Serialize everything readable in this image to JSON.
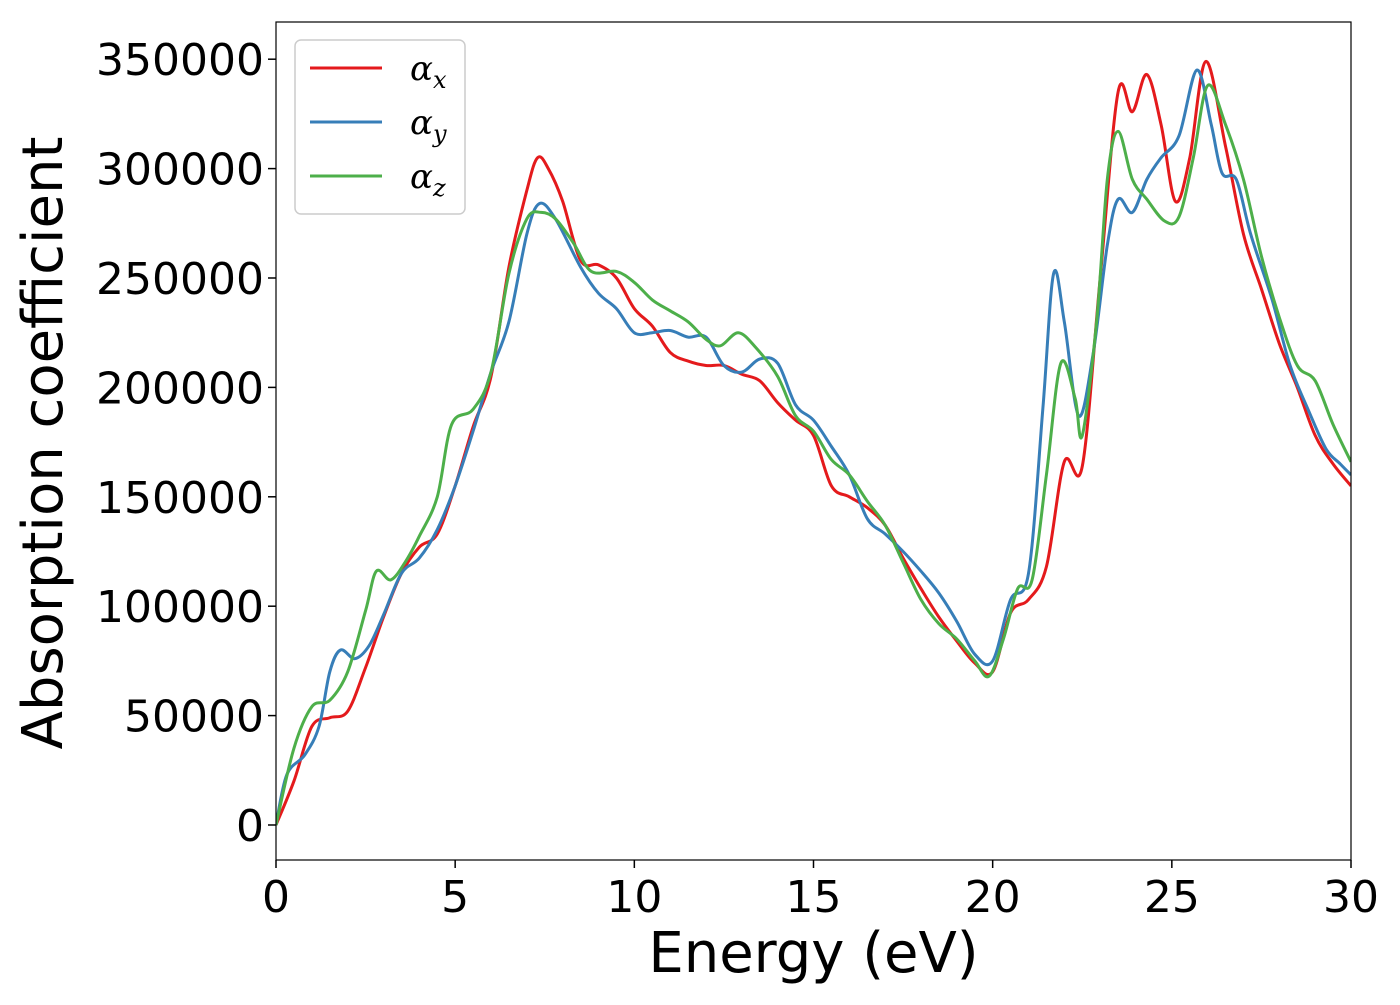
{
  "chart_data": {
    "type": "line",
    "xlabel": "Energy (eV)",
    "ylabel": "Absorption coefficient",
    "xlim": [
      0,
      30
    ],
    "ylim": [
      -16000,
      367000
    ],
    "x_ticks": [
      0,
      5,
      10,
      15,
      20,
      25,
      30
    ],
    "x_tick_labels": [
      "0",
      "5",
      "10",
      "15",
      "20",
      "25",
      "30"
    ],
    "y_ticks": [
      0,
      50000,
      100000,
      150000,
      200000,
      250000,
      300000,
      350000
    ],
    "y_tick_labels": [
      "0",
      "50000",
      "100000",
      "150000",
      "200000",
      "250000",
      "300000",
      "350000"
    ],
    "grid": false,
    "legend_position": "top-left",
    "series": [
      {
        "name": "αx",
        "legend_base": "α",
        "legend_sub": "x",
        "color": "#e41a1c",
        "points": [
          [
            0,
            0
          ],
          [
            0.5,
            20000
          ],
          [
            1.0,
            45000
          ],
          [
            1.5,
            49000
          ],
          [
            2.0,
            52000
          ],
          [
            2.5,
            72000
          ],
          [
            3.0,
            95000
          ],
          [
            3.5,
            115000
          ],
          [
            4.0,
            127000
          ],
          [
            4.5,
            133000
          ],
          [
            5.0,
            155000
          ],
          [
            5.5,
            182000
          ],
          [
            6.0,
            205000
          ],
          [
            6.5,
            255000
          ],
          [
            7.0,
            290000
          ],
          [
            7.3,
            305000
          ],
          [
            7.6,
            300000
          ],
          [
            8.0,
            285000
          ],
          [
            8.5,
            258000
          ],
          [
            9.0,
            256000
          ],
          [
            9.5,
            250000
          ],
          [
            10.0,
            236000
          ],
          [
            10.5,
            228000
          ],
          [
            11.0,
            216000
          ],
          [
            11.5,
            212000
          ],
          [
            12.0,
            210000
          ],
          [
            12.5,
            210000
          ],
          [
            13.0,
            206000
          ],
          [
            13.5,
            203000
          ],
          [
            14.0,
            193000
          ],
          [
            14.5,
            185000
          ],
          [
            15.0,
            178000
          ],
          [
            15.5,
            155000
          ],
          [
            16.0,
            150000
          ],
          [
            16.5,
            145000
          ],
          [
            17.0,
            137000
          ],
          [
            17.5,
            122000
          ],
          [
            18.0,
            108000
          ],
          [
            18.5,
            95000
          ],
          [
            19.0,
            84000
          ],
          [
            19.5,
            74000
          ],
          [
            20.0,
            70000
          ],
          [
            20.5,
            97000
          ],
          [
            21.0,
            103000
          ],
          [
            21.5,
            118000
          ],
          [
            22.0,
            166000
          ],
          [
            22.5,
            164000
          ],
          [
            23.0,
            250000
          ],
          [
            23.5,
            335000
          ],
          [
            23.9,
            326000
          ],
          [
            24.3,
            343000
          ],
          [
            24.7,
            320000
          ],
          [
            25.1,
            285000
          ],
          [
            25.5,
            305000
          ],
          [
            25.95,
            349000
          ],
          [
            26.5,
            310000
          ],
          [
            27.0,
            270000
          ],
          [
            27.5,
            245000
          ],
          [
            28.0,
            220000
          ],
          [
            28.5,
            200000
          ],
          [
            29.0,
            178000
          ],
          [
            29.5,
            165000
          ],
          [
            30.0,
            155000
          ]
        ]
      },
      {
        "name": "αy",
        "legend_base": "α",
        "legend_sub": "y",
        "color": "#377eb8",
        "points": [
          [
            0,
            0
          ],
          [
            0.3,
            23000
          ],
          [
            0.8,
            32000
          ],
          [
            1.2,
            45000
          ],
          [
            1.5,
            70000
          ],
          [
            1.8,
            80000
          ],
          [
            2.2,
            76000
          ],
          [
            2.6,
            82000
          ],
          [
            3.0,
            96000
          ],
          [
            3.5,
            115000
          ],
          [
            4.0,
            122000
          ],
          [
            4.5,
            135000
          ],
          [
            5.0,
            155000
          ],
          [
            5.5,
            180000
          ],
          [
            6.0,
            207000
          ],
          [
            6.5,
            230000
          ],
          [
            7.0,
            270000
          ],
          [
            7.35,
            284000
          ],
          [
            7.8,
            277000
          ],
          [
            8.5,
            255000
          ],
          [
            9.0,
            243000
          ],
          [
            9.5,
            236000
          ],
          [
            10.0,
            225000
          ],
          [
            10.5,
            225000
          ],
          [
            11.0,
            226000
          ],
          [
            11.5,
            223000
          ],
          [
            12.0,
            223000
          ],
          [
            12.5,
            210000
          ],
          [
            13.0,
            207000
          ],
          [
            13.5,
            213000
          ],
          [
            14.0,
            211000
          ],
          [
            14.5,
            192000
          ],
          [
            15.0,
            185000
          ],
          [
            15.5,
            173000
          ],
          [
            16.0,
            160000
          ],
          [
            16.5,
            140000
          ],
          [
            17.0,
            133000
          ],
          [
            17.5,
            125000
          ],
          [
            18.0,
            116000
          ],
          [
            18.5,
            106000
          ],
          [
            19.0,
            93000
          ],
          [
            19.5,
            78000
          ],
          [
            20.0,
            75000
          ],
          [
            20.5,
            103000
          ],
          [
            21.0,
            115000
          ],
          [
            21.4,
            190000
          ],
          [
            21.7,
            252000
          ],
          [
            22.0,
            230000
          ],
          [
            22.4,
            187000
          ],
          [
            22.8,
            215000
          ],
          [
            23.2,
            265000
          ],
          [
            23.5,
            286000
          ],
          [
            23.9,
            280000
          ],
          [
            24.3,
            295000
          ],
          [
            24.7,
            305000
          ],
          [
            25.2,
            315000
          ],
          [
            25.7,
            345000
          ],
          [
            26.1,
            320000
          ],
          [
            26.4,
            298000
          ],
          [
            26.8,
            295000
          ],
          [
            27.2,
            270000
          ],
          [
            27.8,
            240000
          ],
          [
            28.3,
            210000
          ],
          [
            28.8,
            190000
          ],
          [
            29.3,
            172000
          ],
          [
            29.7,
            165000
          ],
          [
            30.0,
            160000
          ]
        ]
      },
      {
        "name": "αz",
        "legend_base": "α",
        "legend_sub": "z",
        "color": "#4daf4a",
        "points": [
          [
            0,
            0
          ],
          [
            0.5,
            35000
          ],
          [
            1.0,
            54000
          ],
          [
            1.5,
            57000
          ],
          [
            2.0,
            70000
          ],
          [
            2.5,
            98000
          ],
          [
            2.8,
            116000
          ],
          [
            3.2,
            112000
          ],
          [
            3.6,
            120000
          ],
          [
            4.0,
            132000
          ],
          [
            4.5,
            150000
          ],
          [
            4.9,
            183000
          ],
          [
            5.5,
            190000
          ],
          [
            6.0,
            207000
          ],
          [
            6.5,
            252000
          ],
          [
            7.0,
            277000
          ],
          [
            7.4,
            280000
          ],
          [
            7.8,
            277000
          ],
          [
            8.3,
            266000
          ],
          [
            8.8,
            253000
          ],
          [
            9.5,
            253000
          ],
          [
            10.0,
            248000
          ],
          [
            10.5,
            240000
          ],
          [
            11.0,
            235000
          ],
          [
            11.5,
            230000
          ],
          [
            12.0,
            222000
          ],
          [
            12.4,
            219000
          ],
          [
            12.9,
            225000
          ],
          [
            13.4,
            218000
          ],
          [
            14.0,
            205000
          ],
          [
            14.5,
            187000
          ],
          [
            15.0,
            180000
          ],
          [
            15.5,
            167000
          ],
          [
            16.0,
            160000
          ],
          [
            16.5,
            148000
          ],
          [
            17.0,
            137000
          ],
          [
            17.5,
            120000
          ],
          [
            18.0,
            103000
          ],
          [
            18.5,
            92000
          ],
          [
            19.0,
            85000
          ],
          [
            19.5,
            75000
          ],
          [
            19.9,
            68000
          ],
          [
            20.3,
            85000
          ],
          [
            20.7,
            108000
          ],
          [
            21.1,
            112000
          ],
          [
            21.5,
            160000
          ],
          [
            21.9,
            211000
          ],
          [
            22.3,
            195000
          ],
          [
            22.5,
            178000
          ],
          [
            22.9,
            230000
          ],
          [
            23.2,
            295000
          ],
          [
            23.5,
            317000
          ],
          [
            23.9,
            295000
          ],
          [
            24.3,
            286000
          ],
          [
            24.8,
            276000
          ],
          [
            25.2,
            278000
          ],
          [
            25.6,
            305000
          ],
          [
            26.0,
            338000
          ],
          [
            26.5,
            320000
          ],
          [
            27.0,
            295000
          ],
          [
            27.5,
            260000
          ],
          [
            28.0,
            232000
          ],
          [
            28.5,
            210000
          ],
          [
            29.0,
            203000
          ],
          [
            29.5,
            183000
          ],
          [
            30.0,
            166000
          ]
        ]
      }
    ]
  }
}
